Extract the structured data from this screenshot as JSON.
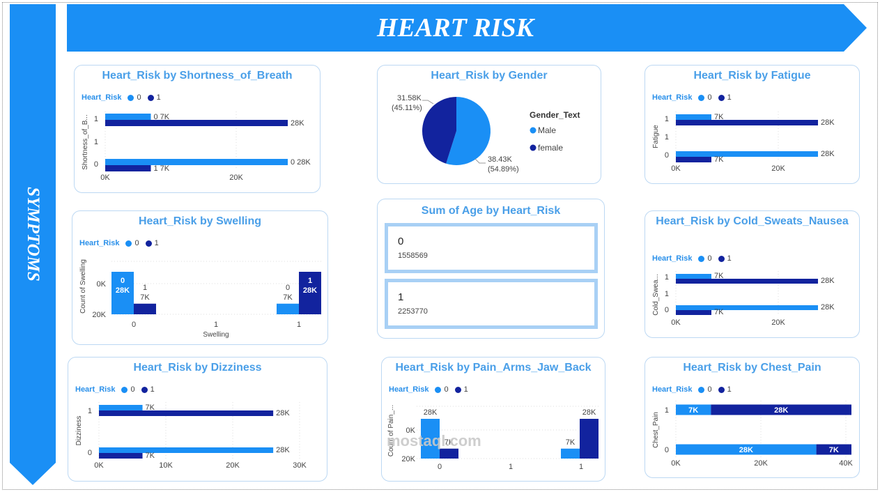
{
  "banner": {
    "title": "HEART RISK"
  },
  "sidebar": {
    "title": "SYMPTOMS"
  },
  "legend_title": "Heart_Risk",
  "legend_values": [
    "0",
    "1"
  ],
  "colors": {
    "series0": "#1a8ff5",
    "series1": "#12239e",
    "accent": "#1a8ff5"
  },
  "watermark": "mostaql.com",
  "kpi": {
    "title": "Sum of Age by Heart_Risk",
    "items": [
      {
        "label": "0",
        "value": "1558569"
      },
      {
        "label": "1",
        "value": "2253770"
      }
    ]
  },
  "chart_data": [
    {
      "id": "shortness",
      "type": "bar",
      "orientation": "horizontal",
      "title": "Heart_Risk by Shortness_of_Breath",
      "ylabel": "Shortness_of_B...",
      "categories": [
        "1",
        "0"
      ],
      "ytick_labels": [
        "1",
        "1",
        "0"
      ],
      "series": [
        {
          "name": "0",
          "values": [
            7000,
            28000
          ]
        },
        {
          "name": "1",
          "values": [
            28000,
            7000
          ]
        }
      ],
      "data_labels": [
        [
          "0 7K",
          "0 28K"
        ],
        [
          "28K",
          "1 7K"
        ]
      ],
      "xticks": [
        "0K",
        "20K"
      ],
      "xlim": [
        0,
        28000
      ]
    },
    {
      "id": "gender",
      "type": "pie",
      "title": "Heart_Risk by Gender",
      "legend_title": "Gender_Text",
      "slices": [
        {
          "name": "Male",
          "value": 38.43,
          "percent": "54.89%"
        },
        {
          "name": "female",
          "value": 31.58,
          "percent": "45.11%"
        }
      ],
      "labels": [
        "38.43K",
        "(54.89%)",
        "31.58K",
        "(45.11%)"
      ]
    },
    {
      "id": "fatigue",
      "type": "bar",
      "orientation": "horizontal",
      "title": "Heart_Risk by Fatigue",
      "ylabel": "Fatigue",
      "categories": [
        "1",
        "0"
      ],
      "ytick_labels": [
        "1",
        "1",
        "0"
      ],
      "series": [
        {
          "name": "0",
          "values": [
            7000,
            28000
          ]
        },
        {
          "name": "1",
          "values": [
            28000,
            7000
          ]
        }
      ],
      "data_labels": [
        [
          "7K",
          "28K"
        ],
        [
          "28K",
          "7K"
        ]
      ],
      "xticks": [
        "0K",
        "20K"
      ],
      "xlim": [
        0,
        28000
      ]
    },
    {
      "id": "swelling",
      "type": "bar",
      "orientation": "vertical",
      "title": "Heart_Risk by Swelling",
      "xlabel": "Swelling",
      "ylabel": "Count of Swelling",
      "categories": [
        "0",
        "1"
      ],
      "xtick_labels": [
        "0",
        "1",
        "1"
      ],
      "series": [
        {
          "name": "0",
          "values": [
            28000,
            7000
          ]
        },
        {
          "name": "1",
          "values": [
            7000,
            28000
          ]
        }
      ],
      "data_labels": [
        [
          "0 28K",
          "0 7K"
        ],
        [
          "1 7K",
          "1 28K"
        ]
      ],
      "yticks": [
        "0K",
        "20K"
      ],
      "ylim": [
        0,
        28000
      ]
    },
    {
      "id": "cold",
      "type": "bar",
      "orientation": "horizontal",
      "title": "Heart_Risk by Cold_Sweats_Nausea",
      "ylabel": "Cold_Swea...",
      "categories": [
        "1",
        "0"
      ],
      "ytick_labels": [
        "1",
        "1",
        "0"
      ],
      "series": [
        {
          "name": "0",
          "values": [
            7000,
            28000
          ]
        },
        {
          "name": "1",
          "values": [
            28000,
            7000
          ]
        }
      ],
      "data_labels": [
        [
          "7K",
          "28K"
        ],
        [
          "28K",
          "7K"
        ]
      ],
      "xticks": [
        "0K",
        "20K"
      ],
      "xlim": [
        0,
        28000
      ]
    },
    {
      "id": "dizziness",
      "type": "bar",
      "orientation": "horizontal",
      "title": "Heart_Risk by Dizziness",
      "ylabel": "Dizziness",
      "categories": [
        "1",
        "0"
      ],
      "ytick_labels": [
        "1",
        "0"
      ],
      "series": [
        {
          "name": "0",
          "values": [
            7000,
            28000
          ]
        },
        {
          "name": "1",
          "values": [
            28000,
            7000
          ]
        }
      ],
      "data_labels": [
        [
          "7K",
          "28K"
        ],
        [
          "28K",
          "7K"
        ]
      ],
      "xticks": [
        "0K",
        "10K",
        "20K",
        "30K"
      ],
      "xlim": [
        0,
        30000
      ]
    },
    {
      "id": "pain",
      "type": "bar",
      "orientation": "vertical",
      "title": "Heart_Risk by Pain_Arms_Jaw_Back",
      "ylabel": "Count of Pain_...",
      "categories": [
        "0",
        "1"
      ],
      "xtick_labels": [
        "0",
        "1",
        "1"
      ],
      "series": [
        {
          "name": "0",
          "values": [
            28000,
            7000
          ]
        },
        {
          "name": "1",
          "values": [
            7000,
            28000
          ]
        }
      ],
      "data_labels": [
        [
          "28K",
          "7K"
        ],
        [
          "7K",
          "28K"
        ]
      ],
      "yticks": [
        "0K",
        "20K"
      ],
      "ylim": [
        0,
        28000
      ]
    },
    {
      "id": "chest",
      "type": "bar",
      "orientation": "horizontal",
      "stacked": true,
      "title": "Heart_Risk by Chest_Pain",
      "ylabel": "Chest_Pain",
      "categories": [
        "1",
        "0"
      ],
      "ytick_labels": [
        "1",
        "0"
      ],
      "series": [
        {
          "name": "0",
          "values": [
            7000,
            28000
          ]
        },
        {
          "name": "1",
          "values": [
            28000,
            7000
          ]
        }
      ],
      "data_labels": [
        [
          "7K",
          "28K"
        ],
        [
          "28K",
          "7K"
        ]
      ],
      "xticks": [
        "0K",
        "20K",
        "40K"
      ],
      "xlim": [
        0,
        40000
      ]
    }
  ]
}
